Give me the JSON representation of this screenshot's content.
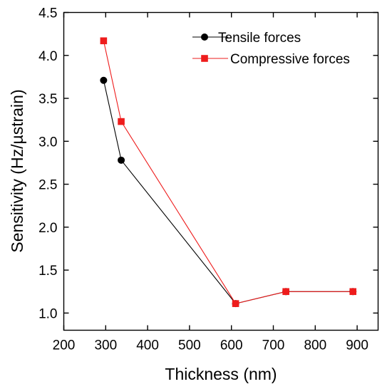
{
  "chart_data": {
    "type": "line",
    "xlabel": "Thickness (nm)",
    "ylabel": "Sensitivity (Hz/µstrain)",
    "xlim": [
      200,
      950
    ],
    "ylim": [
      0.8,
      4.5
    ],
    "xticks": [
      200,
      300,
      400,
      500,
      600,
      700,
      800,
      900
    ],
    "yticks": [
      1.0,
      1.5,
      2.0,
      2.5,
      3.0,
      3.5,
      4.0,
      4.5
    ],
    "xtick_labels": [
      "200",
      "300",
      "400",
      "500",
      "600",
      "700",
      "800",
      "900"
    ],
    "ytick_labels": [
      "1.0",
      "1.5",
      "2.0",
      "2.5",
      "3.0",
      "3.5",
      "4.0",
      "4.5"
    ],
    "grid": false,
    "legend_position": "top-right",
    "series": [
      {
        "name": "Tensile forces",
        "color": "#000000",
        "marker": "circle",
        "x": [
          295,
          337,
          610,
          730,
          890
        ],
        "y": [
          3.71,
          2.78,
          1.11,
          1.25,
          1.25
        ]
      },
      {
        "name": "Compressive forces",
        "color": "#ee1c1c",
        "marker": "square",
        "x": [
          295,
          337,
          610,
          730,
          890
        ],
        "y": [
          4.17,
          3.23,
          1.11,
          1.25,
          1.25
        ]
      }
    ]
  }
}
